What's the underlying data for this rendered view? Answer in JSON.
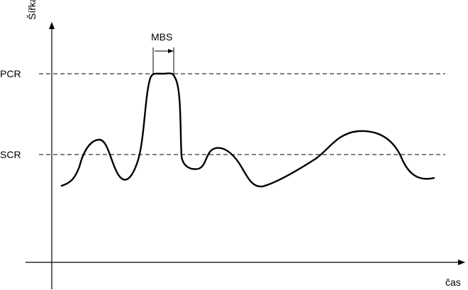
{
  "diagram": {
    "y_axis_label": "Šířka pásma",
    "x_axis_label": "čas",
    "levels": [
      {
        "name": "PCR",
        "label": "PCR"
      },
      {
        "name": "SCR",
        "label": "SCR"
      }
    ],
    "burst_label": "MBS"
  },
  "colors": {
    "line": "#000000",
    "background": "#ffffff"
  }
}
